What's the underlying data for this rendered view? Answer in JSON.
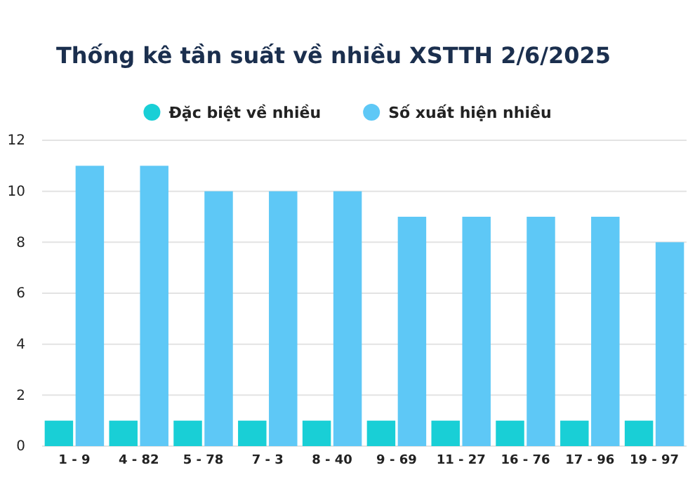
{
  "chart_data": {
    "type": "bar",
    "title": "Thống kê tần suất về nhiều XSTTH 2/6/2025",
    "categories": [
      "1 - 9",
      "4 - 82",
      "5 - 78",
      "7 - 3",
      "8 - 40",
      "9 - 69",
      "11 - 27",
      "16 - 76",
      "17 - 96",
      "19 - 97"
    ],
    "series": [
      {
        "name": "Đặc biệt về nhiều",
        "color": "#19cfd6",
        "values": [
          1,
          1,
          1,
          1,
          1,
          1,
          1,
          1,
          1,
          1
        ]
      },
      {
        "name": "Số xuất hiện nhiều",
        "color": "#5ec8f6",
        "values": [
          11,
          11,
          10,
          10,
          10,
          9,
          9,
          9,
          9,
          8
        ]
      }
    ],
    "ylim": [
      0,
      12
    ],
    "yticks": [
      0,
      2,
      4,
      6,
      8,
      10,
      12
    ],
    "grid": "y",
    "legend": "top"
  }
}
